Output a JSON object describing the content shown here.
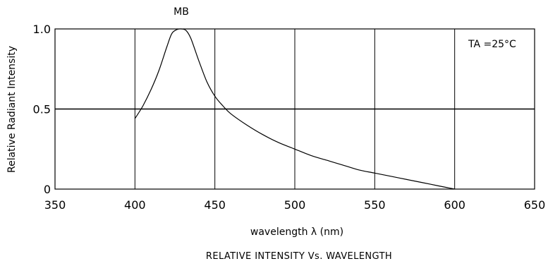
{
  "chart_data": {
    "type": "line",
    "series_label": "MB",
    "title": "RELATIVE  INTENSITY  Vs.  WAVELENGTH",
    "xlabel": "wavelength  λ  (nm)",
    "ylabel": "Relative  Radiant  Intensity",
    "annotation": "TA =25°C",
    "xlim": [
      350,
      650
    ],
    "ylim": [
      0,
      1.0
    ],
    "x_ticks": [
      350,
      400,
      450,
      500,
      550,
      600,
      650
    ],
    "y_ticks": [
      0,
      0.5,
      1.0
    ],
    "x_tick_labels": [
      "350",
      "400",
      "450",
      "500",
      "550",
      "600",
      "650"
    ],
    "y_tick_labels": [
      "0",
      "0.5",
      "1.0"
    ],
    "grid": true,
    "series": [
      {
        "x": [
          400,
          405,
          410,
          415,
          420,
          423,
          426,
          429,
          432,
          435,
          440,
          445,
          450,
          455,
          460,
          470,
          480,
          490,
          500,
          510,
          520,
          530,
          540,
          550,
          560,
          570,
          580,
          590,
          600
        ],
        "y": [
          0.44,
          0.52,
          0.62,
          0.74,
          0.89,
          0.97,
          0.995,
          1.0,
          0.99,
          0.94,
          0.8,
          0.67,
          0.58,
          0.52,
          0.47,
          0.4,
          0.34,
          0.29,
          0.25,
          0.21,
          0.18,
          0.15,
          0.12,
          0.1,
          0.08,
          0.06,
          0.04,
          0.02,
          0.0
        ]
      }
    ]
  }
}
